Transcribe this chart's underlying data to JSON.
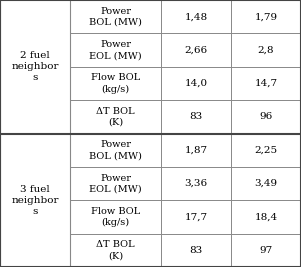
{
  "row_groups": [
    {
      "group_label": "2 fuel\nneighbor\ns",
      "rows": [
        {
          "param": "Power\nBOL (MW)",
          "col1": "1,48",
          "col2": "1,79"
        },
        {
          "param": "Power\nEOL (MW)",
          "col1": "2,66",
          "col2": "2,8"
        },
        {
          "param": "Flow BOL\n(kg/s)",
          "col1": "14,0",
          "col2": "14,7"
        },
        {
          "param": "ΔT BOL\n(K)",
          "col1": "83",
          "col2": "96"
        }
      ]
    },
    {
      "group_label": "3 fuel\nneighbor\ns",
      "rows": [
        {
          "param": "Power\nBOL (MW)",
          "col1": "1,87",
          "col2": "2,25"
        },
        {
          "param": "Power\nEOL (MW)",
          "col1": "3,36",
          "col2": "3,49"
        },
        {
          "param": "Flow BOL\n(kg/s)",
          "col1": "17,7",
          "col2": "18,4"
        },
        {
          "param": "ΔT BOL\n(K)",
          "col1": "83",
          "col2": "97"
        }
      ]
    }
  ],
  "bg_color": "#ffffff",
  "cell_bg": "#ffffff",
  "border_color": "#888888",
  "thick_border_color": "#444444",
  "font_size": 7.0,
  "group_font_size": 7.5
}
